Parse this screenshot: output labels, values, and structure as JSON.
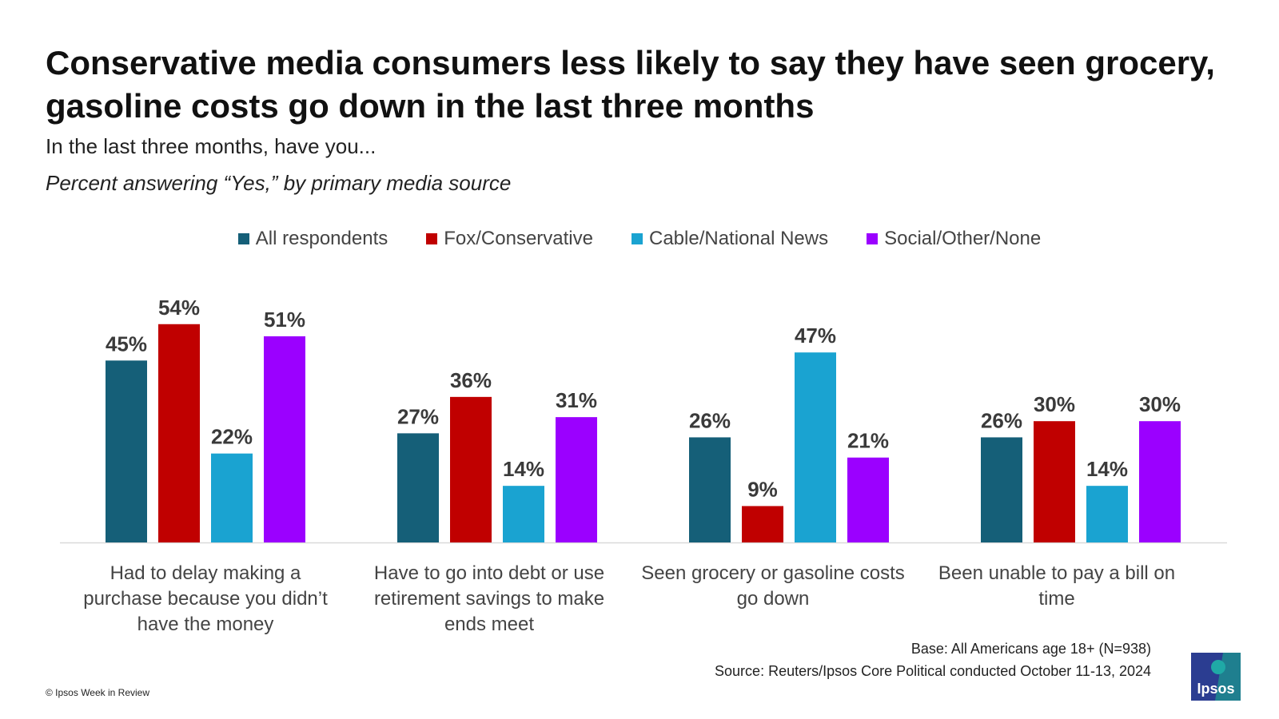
{
  "title": "Conservative media consumers less likely to say they have seen grocery, gasoline costs go down in the last three months",
  "subtitle": "In the last three months, have you...",
  "subtitle2": "Percent answering “Yes,” by primary media source",
  "footer": {
    "base": "Base: All Americans age 18+ (N=938)",
    "source": "Source: Reuters/Ipsos Core Political conducted October 11-13, 2024",
    "copyright": "© Ipsos Week in Review",
    "logo_text": "Ipsos"
  },
  "chart_data": {
    "type": "bar",
    "categories": [
      "Had to delay making a purchase because you didn’t have the money",
      "Have to go into debt or use retirement savings to make ends meet",
      "Seen grocery or gasoline costs go down",
      "Been unable to pay a bill on time"
    ],
    "series": [
      {
        "name": "All respondents",
        "color": "#155f78",
        "values": [
          45,
          27,
          26,
          26
        ]
      },
      {
        "name": "Fox/Conservative",
        "color": "#c00000",
        "values": [
          54,
          36,
          9,
          30
        ]
      },
      {
        "name": "Cable/National News",
        "color": "#1aa3d1",
        "values": [
          22,
          14,
          47,
          14
        ]
      },
      {
        "name": "Social/Other/None",
        "color": "#9b00ff",
        "values": [
          51,
          31,
          21,
          30
        ]
      }
    ],
    "value_suffix": "%",
    "ylim": [
      0,
      60
    ],
    "legend_position": "top",
    "grid": false
  }
}
